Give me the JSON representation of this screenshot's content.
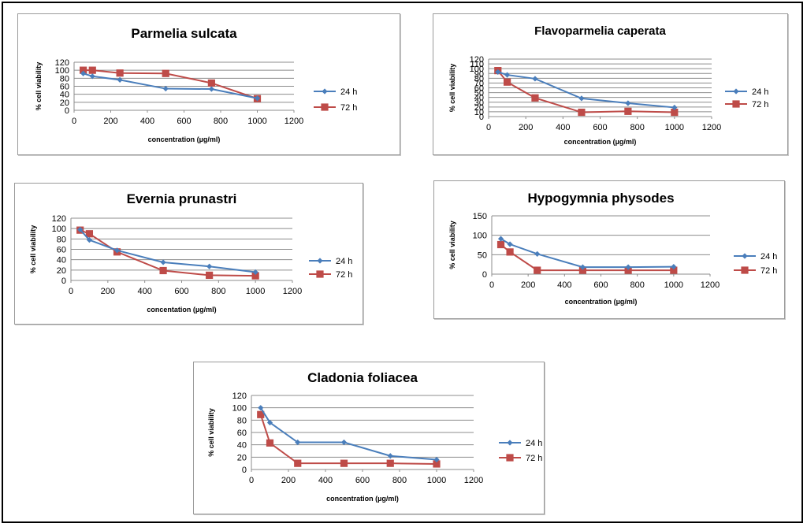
{
  "colors": {
    "h24": "#4a7ebb",
    "h72": "#be4b48"
  },
  "chart_data": [
    {
      "type": "line",
      "title": "Parmelia sulcata",
      "xlabel": "concentration (µg/ml)",
      "ylabel": "% cell viability",
      "xlim": [
        0,
        1200
      ],
      "ylim": [
        0,
        120
      ],
      "xticks": [
        0,
        200,
        400,
        600,
        800,
        1000,
        1200
      ],
      "yticks": [
        0,
        20,
        40,
        60,
        80,
        100,
        120
      ],
      "series": [
        {
          "name": "24 h",
          "points": [
            [
              50,
              92
            ],
            [
              100,
              85
            ],
            [
              250,
              76
            ],
            [
              500,
              54
            ],
            [
              750,
              53
            ],
            [
              1000,
              30
            ]
          ]
        },
        {
          "name": "72 h",
          "points": [
            [
              50,
              100
            ],
            [
              100,
              100
            ],
            [
              250,
              93
            ],
            [
              500,
              92
            ],
            [
              750,
              68
            ],
            [
              1000,
              29
            ]
          ]
        }
      ]
    },
    {
      "type": "line",
      "title": "Flavoparmelia caperata",
      "xlabel": "concentration (µg/ml)",
      "ylabel": "% cell viability",
      "xlim": [
        0,
        1200
      ],
      "ylim": [
        0,
        120
      ],
      "xticks": [
        0,
        200,
        400,
        600,
        800,
        1000,
        1200
      ],
      "yticks": [
        0,
        10,
        20,
        30,
        40,
        50,
        60,
        70,
        80,
        90,
        100,
        110,
        120
      ],
      "series": [
        {
          "name": "24 h",
          "points": [
            [
              50,
              93
            ],
            [
              100,
              87
            ],
            [
              250,
              79
            ],
            [
              500,
              38
            ],
            [
              750,
              28
            ],
            [
              1000,
              19
            ]
          ]
        },
        {
          "name": "72 h",
          "points": [
            [
              50,
              96
            ],
            [
              100,
              72
            ],
            [
              250,
              39
            ],
            [
              500,
              9
            ],
            [
              750,
              11
            ],
            [
              1000,
              9
            ]
          ]
        }
      ]
    },
    {
      "type": "line",
      "title": "Evernia prunastri",
      "xlabel": "concentation (µg/ml)",
      "ylabel": "% cell viability",
      "xlim": [
        0,
        1200
      ],
      "ylim": [
        0,
        120
      ],
      "xticks": [
        0,
        200,
        400,
        600,
        800,
        1000,
        1200
      ],
      "yticks": [
        0,
        20,
        40,
        60,
        80,
        100,
        120
      ],
      "series": [
        {
          "name": "24 h",
          "points": [
            [
              50,
              98
            ],
            [
              100,
              78
            ],
            [
              250,
              58
            ],
            [
              500,
              35
            ],
            [
              750,
              27
            ],
            [
              1000,
              16
            ]
          ]
        },
        {
          "name": "72 h",
          "points": [
            [
              50,
              97
            ],
            [
              100,
              90
            ],
            [
              250,
              55
            ],
            [
              500,
              19
            ],
            [
              750,
              10
            ],
            [
              1000,
              9
            ]
          ]
        }
      ]
    },
    {
      "type": "line",
      "title": "Hypogymnia physodes",
      "xlabel": "concentration (µg/ml)",
      "ylabel": "% cell viability",
      "xlim": [
        0,
        1200
      ],
      "ylim": [
        0,
        150
      ],
      "xticks": [
        0,
        200,
        400,
        600,
        800,
        1000,
        1200
      ],
      "yticks": [
        0,
        50,
        100,
        150
      ],
      "series": [
        {
          "name": "24 h",
          "points": [
            [
              50,
              91
            ],
            [
              100,
              77
            ],
            [
              250,
              52
            ],
            [
              500,
              18
            ],
            [
              750,
              18
            ],
            [
              1000,
              19
            ]
          ]
        },
        {
          "name": "72 h",
          "points": [
            [
              50,
              76
            ],
            [
              100,
              57
            ],
            [
              250,
              10
            ],
            [
              500,
              10
            ],
            [
              750,
              10
            ],
            [
              1000,
              10
            ]
          ]
        }
      ]
    },
    {
      "type": "line",
      "title": "Cladonia foliacea",
      "xlabel": "concentration (µg/ml)",
      "ylabel": "% cell viability",
      "xlim": [
        0,
        1200
      ],
      "ylim": [
        0,
        120
      ],
      "xticks": [
        0,
        200,
        400,
        600,
        800,
        1000,
        1200
      ],
      "yticks": [
        0,
        20,
        40,
        60,
        80,
        100,
        120
      ],
      "series": [
        {
          "name": "24 h",
          "points": [
            [
              50,
              100
            ],
            [
              100,
              76
            ],
            [
              250,
              44
            ],
            [
              500,
              44
            ],
            [
              750,
              22
            ],
            [
              1000,
              16
            ]
          ]
        },
        {
          "name": "72 h",
          "points": [
            [
              50,
              89
            ],
            [
              100,
              43
            ],
            [
              250,
              10
            ],
            [
              500,
              10
            ],
            [
              750,
              10
            ],
            [
              1000,
              9
            ]
          ]
        }
      ]
    }
  ]
}
